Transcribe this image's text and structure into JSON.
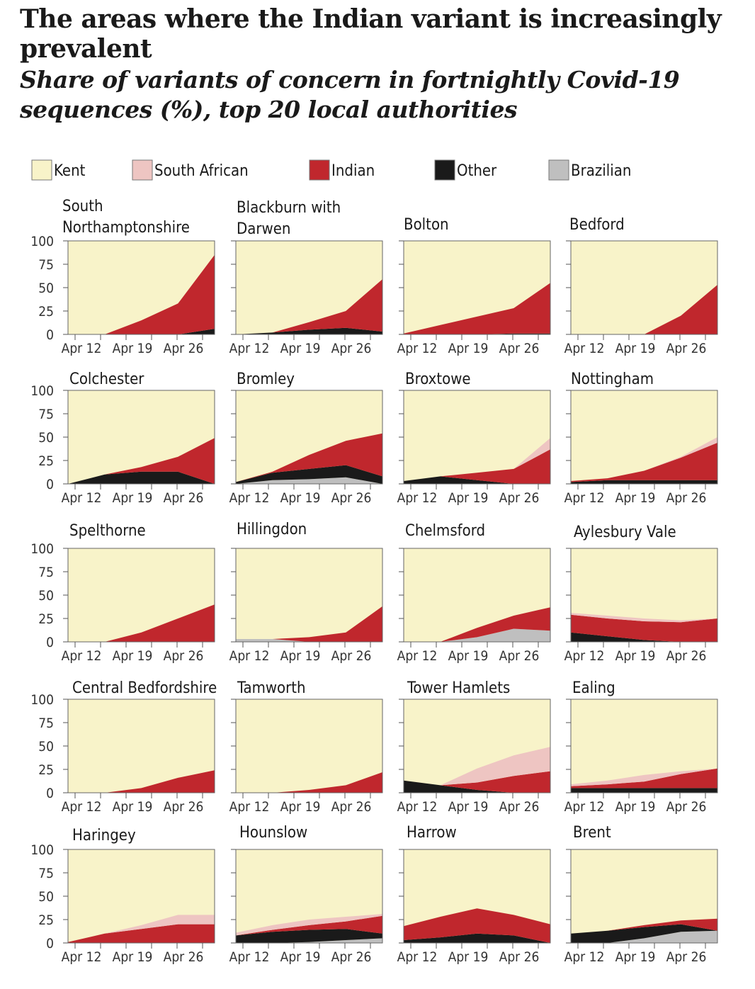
{
  "title": "The areas where the Indian variant is increasingly prevalent",
  "subtitle": "Share of variants of concern in fortnightly Covid-19 sequences (%), top 20 local authorities",
  "colors": {
    "kent": "#f8f3c9",
    "south_african": "#eec5c2",
    "indian": "#c0272d",
    "other": "#1a1a1a",
    "brazilian": "#bfbfbf"
  },
  "chart_data": {
    "type": "area",
    "stacked": true,
    "x": [
      "Apr 5",
      "Apr 12",
      "Apr 19",
      "Apr 26",
      "May 3"
    ],
    "x_tick_labels": [
      "Apr 12",
      "Apr 19",
      "Apr 26"
    ],
    "y_ticks": [
      "0",
      "25",
      "50",
      "75",
      "100"
    ],
    "ylim": [
      0,
      100
    ],
    "legend": [
      {
        "key": "kent",
        "label": "Kent"
      },
      {
        "key": "south_african",
        "label": "South African"
      },
      {
        "key": "indian",
        "label": "Indian"
      },
      {
        "key": "other",
        "label": "Other"
      },
      {
        "key": "brazilian",
        "label": "Brazilian"
      }
    ],
    "stack_order": [
      "brazilian",
      "other",
      "indian",
      "south_african",
      "kent"
    ],
    "panels": [
      {
        "name": "South Northamptonshire",
        "series": {
          "brazilian": [
            0,
            0,
            0,
            0,
            0
          ],
          "other": [
            0,
            0,
            0,
            0,
            6
          ],
          "indian": [
            0,
            0,
            15,
            33,
            79
          ],
          "south_african": [
            0,
            0,
            0,
            0,
            0
          ]
        }
      },
      {
        "name": "Blackburn with Darwen",
        "series": {
          "brazilian": [
            0,
            0,
            0,
            0,
            0
          ],
          "other": [
            0,
            2,
            5,
            7,
            3
          ],
          "indian": [
            0,
            0,
            8,
            18,
            56
          ],
          "south_african": [
            0,
            0,
            0,
            0,
            0
          ]
        }
      },
      {
        "name": "Bolton",
        "series": {
          "brazilian": [
            0,
            0,
            0,
            0,
            0
          ],
          "other": [
            0,
            0,
            0,
            1,
            1
          ],
          "indian": [
            1,
            10,
            19,
            27,
            54
          ],
          "south_african": [
            0,
            0,
            0,
            0,
            0
          ]
        }
      },
      {
        "name": "Bedford",
        "series": {
          "brazilian": [
            0,
            0,
            0,
            0,
            0
          ],
          "other": [
            0,
            0,
            0,
            0,
            0
          ],
          "indian": [
            0,
            0,
            0,
            20,
            53
          ],
          "south_african": [
            0,
            0,
            0,
            0,
            0
          ]
        }
      },
      {
        "name": "Colchester",
        "series": {
          "brazilian": [
            0,
            0,
            0,
            0,
            0
          ],
          "other": [
            0,
            10,
            13,
            13,
            0
          ],
          "indian": [
            0,
            0,
            5,
            16,
            49
          ],
          "south_african": [
            0,
            0,
            0,
            0,
            0
          ]
        }
      },
      {
        "name": "Bromley",
        "series": {
          "brazilian": [
            0,
            4,
            5,
            7,
            0
          ],
          "other": [
            2,
            8,
            11,
            13,
            8
          ],
          "indian": [
            0,
            1,
            15,
            26,
            46
          ],
          "south_african": [
            0,
            0,
            0,
            0,
            0
          ]
        }
      },
      {
        "name": "Broxtowe",
        "series": {
          "brazilian": [
            0,
            0,
            0,
            0,
            0
          ],
          "other": [
            3,
            8,
            4,
            0,
            0
          ],
          "indian": [
            0,
            0,
            8,
            16,
            37
          ],
          "south_african": [
            0,
            0,
            0,
            0,
            12
          ]
        }
      },
      {
        "name": "Nottingham",
        "series": {
          "brazilian": [
            0,
            0,
            0,
            0,
            0
          ],
          "other": [
            2,
            4,
            4,
            4,
            4
          ],
          "indian": [
            1,
            2,
            10,
            24,
            40
          ],
          "south_african": [
            0,
            0,
            0,
            1,
            6
          ]
        }
      },
      {
        "name": "Spelthorne",
        "series": {
          "brazilian": [
            0,
            0,
            0,
            0,
            0
          ],
          "other": [
            0,
            0,
            0,
            0,
            0
          ],
          "indian": [
            0,
            0,
            10,
            25,
            40
          ],
          "south_african": [
            0,
            0,
            0,
            0,
            0
          ]
        }
      },
      {
        "name": "Hillingdon",
        "series": {
          "brazilian": [
            3,
            3,
            0,
            0,
            0
          ],
          "other": [
            0,
            0,
            0,
            0,
            0
          ],
          "indian": [
            0,
            0,
            5,
            10,
            38
          ],
          "south_african": [
            0,
            0,
            0,
            0,
            0
          ]
        }
      },
      {
        "name": "Chelmsford",
        "series": {
          "brazilian": [
            0,
            0,
            5,
            14,
            12
          ],
          "other": [
            0,
            0,
            0,
            0,
            0
          ],
          "indian": [
            0,
            0,
            10,
            14,
            25
          ],
          "south_african": [
            0,
            0,
            0,
            0,
            0
          ]
        }
      },
      {
        "name": "Aylesbury Vale",
        "series": {
          "brazilian": [
            0,
            0,
            0,
            0,
            0
          ],
          "other": [
            10,
            6,
            2,
            0,
            0
          ],
          "indian": [
            19,
            19,
            20,
            21,
            25
          ],
          "south_african": [
            2,
            3,
            3,
            2,
            0
          ]
        }
      },
      {
        "name": "Central Bedfordshire",
        "series": {
          "brazilian": [
            0,
            0,
            0,
            0,
            0
          ],
          "other": [
            0,
            0,
            0,
            0,
            0
          ],
          "indian": [
            0,
            0,
            5,
            16,
            24
          ],
          "south_african": [
            0,
            0,
            0,
            0,
            0
          ]
        }
      },
      {
        "name": "Tamworth",
        "series": {
          "brazilian": [
            0,
            0,
            0,
            0,
            0
          ],
          "other": [
            0,
            0,
            0,
            0,
            0
          ],
          "indian": [
            0,
            0,
            3,
            8,
            22
          ],
          "south_african": [
            0,
            0,
            0,
            0,
            0
          ]
        }
      },
      {
        "name": "Tower Hamlets",
        "series": {
          "brazilian": [
            0,
            0,
            0,
            0,
            0
          ],
          "other": [
            13,
            8,
            3,
            0,
            0
          ],
          "indian": [
            0,
            0,
            8,
            18,
            23
          ],
          "south_african": [
            0,
            0,
            15,
            22,
            26
          ]
        }
      },
      {
        "name": "Ealing",
        "series": {
          "brazilian": [
            0,
            0,
            0,
            0,
            0
          ],
          "other": [
            5,
            5,
            5,
            5,
            5
          ],
          "indian": [
            2,
            4,
            7,
            15,
            21
          ],
          "south_african": [
            2,
            4,
            7,
            3,
            0
          ]
        }
      },
      {
        "name": "Haringey",
        "series": {
          "brazilian": [
            0,
            0,
            0,
            0,
            0
          ],
          "other": [
            0,
            0,
            0,
            0,
            0
          ],
          "indian": [
            1,
            10,
            15,
            20,
            20
          ],
          "south_african": [
            0,
            0,
            4,
            10,
            10
          ]
        }
      },
      {
        "name": "Hounslow",
        "series": {
          "brazilian": [
            0,
            0,
            1,
            3,
            5
          ],
          "other": [
            8,
            12,
            13,
            12,
            5
          ],
          "indian": [
            0,
            2,
            5,
            8,
            19
          ],
          "south_african": [
            3,
            5,
            6,
            5,
            2
          ]
        }
      },
      {
        "name": "Harrow",
        "series": {
          "brazilian": [
            0,
            0,
            0,
            0,
            0
          ],
          "other": [
            3,
            6,
            10,
            8,
            0
          ],
          "indian": [
            15,
            22,
            27,
            22,
            20
          ],
          "south_african": [
            0,
            0,
            0,
            0,
            0
          ]
        }
      },
      {
        "name": "Brent",
        "series": {
          "brazilian": [
            0,
            0,
            5,
            12,
            13
          ],
          "other": [
            10,
            13,
            12,
            8,
            0
          ],
          "indian": [
            0,
            0,
            2,
            4,
            13
          ],
          "south_african": [
            0,
            0,
            0,
            0,
            0
          ]
        }
      }
    ]
  }
}
